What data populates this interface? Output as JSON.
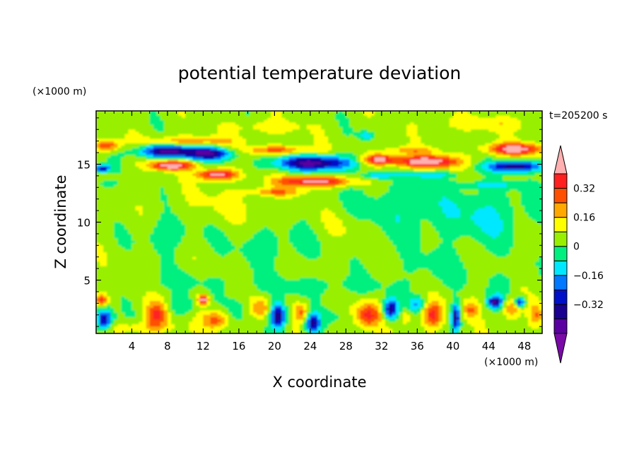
{
  "chart_data": {
    "type": "heatmap",
    "title": "potential temperature deviation",
    "xlabel": "X coordinate",
    "ylabel": "Z coordinate",
    "x_unit": "(×1000 m)",
    "y_unit": "(×1000 m)",
    "time_label": "t=205200 s",
    "xlim": [
      0,
      50
    ],
    "ylim": [
      0.4,
      19.6
    ],
    "x_ticks": [
      4,
      8,
      12,
      16,
      20,
      24,
      28,
      32,
      36,
      40,
      44,
      48
    ],
    "y_ticks": [
      5,
      10,
      15
    ],
    "colorbar": {
      "levels": [
        -0.48,
        -0.4,
        -0.32,
        -0.24,
        -0.16,
        -0.08,
        0,
        0.08,
        0.16,
        0.24,
        0.32,
        0.4,
        0.48
      ],
      "labels": [
        "0.32",
        "0.16",
        "0",
        "−0.16",
        "−0.32"
      ],
      "label_values": [
        0.32,
        0.16,
        0,
        -0.16,
        -0.32
      ],
      "colors": [
        "#7a0aa8",
        "#5a00a0",
        "#1a0090",
        "#0010c8",
        "#0078ff",
        "#00e8ff",
        "#00f080",
        "#98f000",
        "#ffff00",
        "#ffa800",
        "#ff5000",
        "#ff2020",
        "#ffb0b0"
      ]
    },
    "blobs": [
      {
        "x": 8,
        "y": 16.1,
        "sx": 3.2,
        "sy": 0.55,
        "v": -0.46
      },
      {
        "x": 12.8,
        "y": 15.9,
        "sx": 2.6,
        "sy": 0.55,
        "v": -0.4
      },
      {
        "x": 8.4,
        "y": 14.9,
        "sx": 2.4,
        "sy": 0.42,
        "v": 0.45
      },
      {
        "x": 13.6,
        "y": 14.1,
        "sx": 2.1,
        "sy": 0.45,
        "v": 0.45
      },
      {
        "x": 10.5,
        "y": 17.0,
        "sx": 5,
        "sy": 0.4,
        "v": 0.2
      },
      {
        "x": 1.2,
        "y": 16.6,
        "sx": 1.3,
        "sy": 0.5,
        "v": 0.3
      },
      {
        "x": 0.6,
        "y": 14.6,
        "sx": 1.0,
        "sy": 0.35,
        "v": -0.35
      },
      {
        "x": 1,
        "y": 13.3,
        "sx": 1.2,
        "sy": 0.3,
        "v": -0.12
      },
      {
        "x": 24.5,
        "y": 15.1,
        "sx": 4.5,
        "sy": 0.65,
        "v": -0.46
      },
      {
        "x": 20.5,
        "y": 16.2,
        "sx": 4,
        "sy": 0.4,
        "v": 0.24
      },
      {
        "x": 24.5,
        "y": 13.5,
        "sx": 4,
        "sy": 0.45,
        "v": 0.42
      },
      {
        "x": 20,
        "y": 12.6,
        "sx": 3,
        "sy": 0.35,
        "v": 0.2
      },
      {
        "x": 30.3,
        "y": 17.5,
        "sx": 0.8,
        "sy": 0.35,
        "v": -0.2
      },
      {
        "x": 31.7,
        "y": 15.4,
        "sx": 1.8,
        "sy": 0.45,
        "v": 0.42
      },
      {
        "x": 31.3,
        "y": 14.0,
        "sx": 1.5,
        "sy": 0.3,
        "v": -0.2
      },
      {
        "x": 37,
        "y": 15.2,
        "sx": 3.6,
        "sy": 0.55,
        "v": 0.46
      },
      {
        "x": 35,
        "y": 16.2,
        "sx": 3,
        "sy": 0.3,
        "v": 0.16
      },
      {
        "x": 37,
        "y": 14.1,
        "sx": 3.5,
        "sy": 0.3,
        "v": -0.16
      },
      {
        "x": 47,
        "y": 16.3,
        "sx": 3.2,
        "sy": 0.5,
        "v": 0.42
      },
      {
        "x": 47,
        "y": 14.8,
        "sx": 3.2,
        "sy": 0.45,
        "v": -0.42
      },
      {
        "x": 44,
        "y": 13.2,
        "sx": 5,
        "sy": 0.3,
        "v": -0.12
      },
      {
        "x": 19,
        "y": 18.2,
        "sx": 4,
        "sy": 0.6,
        "v": 0.1
      },
      {
        "x": 44,
        "y": 18.5,
        "sx": 6,
        "sy": 0.6,
        "v": 0.1
      },
      {
        "x": 8,
        "y": 9.0,
        "sx": 3,
        "sy": 1.5,
        "v": -0.1
      },
      {
        "x": 20,
        "y": 8.0,
        "sx": 5,
        "sy": 1.8,
        "v": -0.08
      },
      {
        "x": 34,
        "y": 11.0,
        "sx": 6,
        "sy": 2.5,
        "v": -0.1
      },
      {
        "x": 44,
        "y": 10.5,
        "sx": 5,
        "sy": 2.5,
        "v": -0.12
      },
      {
        "x": 14,
        "y": 11.5,
        "sx": 5,
        "sy": 1.5,
        "v": 0.05
      },
      {
        "x": 28,
        "y": 9.5,
        "sx": 4,
        "sy": 1.5,
        "v": 0.05
      },
      {
        "x": 38,
        "y": 6.0,
        "sx": 5,
        "sy": 1.5,
        "v": -0.06
      },
      {
        "x": 10,
        "y": 5.0,
        "sx": 6,
        "sy": 1.0,
        "v": -0.05
      },
      {
        "x": 25,
        "y": 4.5,
        "sx": 8,
        "sy": 0.8,
        "v": -0.08
      },
      {
        "x": 0.9,
        "y": 1.6,
        "sx": 0.9,
        "sy": 0.9,
        "v": -0.42
      },
      {
        "x": 0.6,
        "y": 3.3,
        "sx": 0.7,
        "sy": 0.5,
        "v": 0.3
      },
      {
        "x": 6.8,
        "y": 2.0,
        "sx": 1.2,
        "sy": 1.1,
        "v": 0.3
      },
      {
        "x": 5.5,
        "y": 0.9,
        "sx": 4,
        "sy": 0.5,
        "v": 0.1
      },
      {
        "x": 9.5,
        "y": 2.8,
        "sx": 1.6,
        "sy": 0.8,
        "v": -0.12
      },
      {
        "x": 12.0,
        "y": 3.3,
        "sx": 0.6,
        "sy": 0.4,
        "v": 0.45
      },
      {
        "x": 13.5,
        "y": 1.6,
        "sx": 1.5,
        "sy": 0.8,
        "v": 0.25
      },
      {
        "x": 15.8,
        "y": 2.5,
        "sx": 1.2,
        "sy": 1.0,
        "v": -0.1
      },
      {
        "x": 20.4,
        "y": 1.9,
        "sx": 0.9,
        "sy": 1.1,
        "v": -0.45
      },
      {
        "x": 18.5,
        "y": 2.6,
        "sx": 1.0,
        "sy": 0.8,
        "v": 0.2
      },
      {
        "x": 23.0,
        "y": 2.2,
        "sx": 0.9,
        "sy": 0.8,
        "v": 0.22
      },
      {
        "x": 24.3,
        "y": 1.3,
        "sx": 0.8,
        "sy": 0.9,
        "v": -0.38
      },
      {
        "x": 27.0,
        "y": 2.0,
        "sx": 1.5,
        "sy": 1.0,
        "v": -0.05
      },
      {
        "x": 30.5,
        "y": 2.0,
        "sx": 1.4,
        "sy": 1.1,
        "v": 0.3
      },
      {
        "x": 33.0,
        "y": 2.5,
        "sx": 0.8,
        "sy": 0.9,
        "v": -0.42
      },
      {
        "x": 34.8,
        "y": 1.8,
        "sx": 0.6,
        "sy": 0.6,
        "v": 0.15
      },
      {
        "x": 36.0,
        "y": 2.9,
        "sx": 1.0,
        "sy": 0.7,
        "v": -0.2
      },
      {
        "x": 37.7,
        "y": 2.0,
        "sx": 1.2,
        "sy": 1.1,
        "v": 0.3
      },
      {
        "x": 40.3,
        "y": 1.8,
        "sx": 0.5,
        "sy": 1.1,
        "v": -0.42
      },
      {
        "x": 42.0,
        "y": 2.5,
        "sx": 0.9,
        "sy": 0.8,
        "v": 0.2
      },
      {
        "x": 44.7,
        "y": 3.1,
        "sx": 0.8,
        "sy": 0.5,
        "v": -0.42
      },
      {
        "x": 46.5,
        "y": 2.5,
        "sx": 0.9,
        "sy": 0.9,
        "v": 0.22
      },
      {
        "x": 47.5,
        "y": 3.1,
        "sx": 0.6,
        "sy": 0.4,
        "v": -0.4
      },
      {
        "x": 49.3,
        "y": 2.0,
        "sx": 0.8,
        "sy": 1.0,
        "v": 0.2
      },
      {
        "x": 45.5,
        "y": 4.5,
        "sx": 1.5,
        "sy": 1.0,
        "v": -0.1
      }
    ]
  }
}
